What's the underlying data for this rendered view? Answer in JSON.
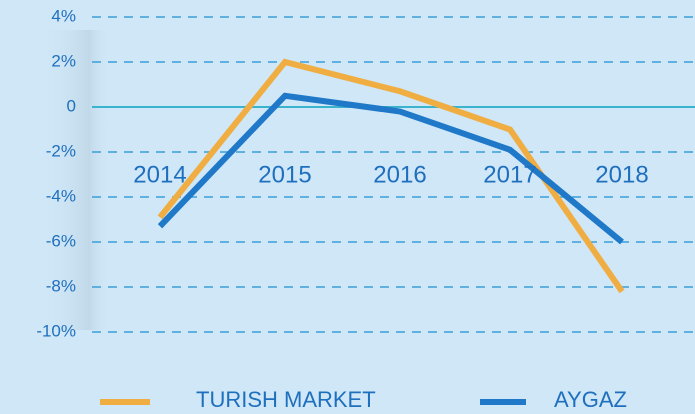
{
  "chart_data": {
    "type": "line",
    "categories": [
      "2014",
      "2015",
      "2016",
      "2017",
      "2018"
    ],
    "series": [
      {
        "name": "TURISH MARKET",
        "color": "#f0ad42",
        "values": [
          -4.9,
          2.0,
          0.7,
          -1.0,
          -8.2
        ]
      },
      {
        "name": "AYGAZ",
        "color": "#1f78c8",
        "values": [
          -5.3,
          0.5,
          -0.2,
          -1.9,
          -6.0
        ]
      }
    ],
    "ylim": [
      -10,
      4
    ],
    "yticks": [
      {
        "value": 4,
        "label": "4%"
      },
      {
        "value": 2,
        "label": "2%"
      },
      0,
      {
        "value": -2,
        "label": "-2%"
      },
      {
        "value": -4,
        "label": "-4%"
      },
      {
        "value": -6,
        "label": "-6%"
      },
      {
        "value": -8,
        "label": "-8%"
      },
      {
        "value": -10,
        "label": "-10%"
      }
    ],
    "grid": true,
    "legend": "bottom"
  }
}
